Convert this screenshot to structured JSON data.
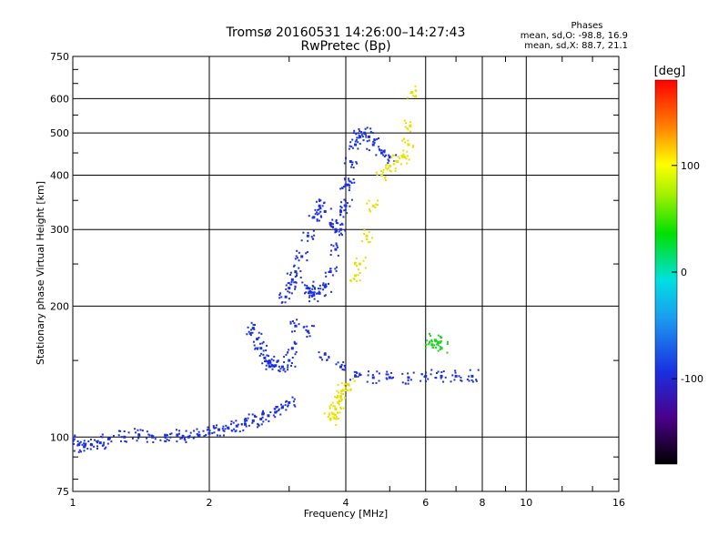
{
  "chart_data": {
    "type": "scatter",
    "title": "Tromsø 20160531 14:26:00–14:27:43",
    "subtitle": "RwPretec (Bp)",
    "xlabel": "Frequency [MHz]",
    "ylabel": "Stationary phase Virtual Height [km]",
    "x_scale": "log",
    "y_scale": "log",
    "xlim": [
      1,
      16
    ],
    "ylim": [
      75,
      750
    ],
    "x_ticks": [
      "1",
      "2",
      "4",
      "6",
      "8",
      "10",
      "16"
    ],
    "x_tick_values": [
      1,
      2,
      4,
      6,
      8,
      10,
      16
    ],
    "y_ticks": [
      "75",
      "100",
      "200",
      "300",
      "400",
      "500",
      "600",
      "750"
    ],
    "y_tick_values": [
      75,
      100,
      200,
      300,
      400,
      500,
      600,
      750
    ],
    "grid": true,
    "stats": {
      "heading": "Phases",
      "line_o": "mean, sd,O: -98.8, 16.9",
      "line_x": "mean, sd,X:  88.7, 21.1"
    },
    "colorbar": {
      "label": "[deg]",
      "range": [
        -180,
        180
      ],
      "ticks": [
        "100",
        "0",
        "-100"
      ],
      "tick_values": [
        100,
        0,
        -100
      ]
    },
    "series": [
      {
        "polarization": "O",
        "phase_deg": -100,
        "color": "#1a2fe0",
        "x": [
          1.0,
          1.03,
          1.06,
          1.1,
          1.15,
          1.2,
          1.3,
          1.4,
          1.5,
          1.6,
          1.7,
          1.8,
          1.9,
          2.0,
          2.1,
          2.2,
          2.3,
          2.4,
          2.5,
          2.6,
          2.7,
          2.8,
          2.9,
          3.0
        ],
        "y": [
          98,
          96,
          95,
          96,
          97,
          99,
          100,
          101,
          100,
          101,
          101,
          100,
          101,
          102,
          104,
          105,
          106,
          107,
          109,
          110,
          112,
          114,
          117,
          120
        ]
      },
      {
        "polarization": "O",
        "phase_deg": -100,
        "color": "#1a2fe0",
        "x": [
          2.5,
          2.55,
          2.6,
          2.65,
          2.7,
          2.75,
          2.8,
          2.9,
          3.0,
          3.05,
          3.1,
          3.3,
          3.6,
          3.9,
          4.2,
          4.6,
          5.0,
          5.5,
          6.0,
          6.5,
          7.0,
          7.6
        ],
        "y": [
          178,
          168,
          160,
          152,
          148,
          146,
          146,
          145,
          150,
          160,
          180,
          175,
          155,
          145,
          138,
          137,
          137,
          137,
          138,
          138,
          138,
          138
        ]
      },
      {
        "polarization": "O",
        "phase_deg": -100,
        "color": "#1a2fe0",
        "x": [
          2.95,
          3.0,
          3.05,
          3.1,
          3.2,
          3.3,
          3.4,
          3.5,
          3.6,
          3.7,
          3.8,
          3.9,
          4.0,
          4.1,
          4.2,
          4.3,
          4.4,
          4.5,
          4.6,
          4.8,
          5.0
        ],
        "y": [
          210,
          220,
          230,
          240,
          260,
          290,
          320,
          340,
          330,
          310,
          300,
          330,
          380,
          430,
          470,
          490,
          500,
          490,
          470,
          450,
          440
        ]
      },
      {
        "polarization": "O",
        "phase_deg": -100,
        "color": "#1a2fe0",
        "x": [
          3.3,
          3.35,
          3.4,
          3.5,
          3.6,
          3.7,
          3.8,
          3.9,
          4.0,
          4.05
        ],
        "y": [
          220,
          215,
          212,
          214,
          222,
          240,
          270,
          300,
          340,
          380
        ]
      },
      {
        "polarization": "X",
        "phase_deg": 95,
        "color": "#e8e000",
        "x": [
          3.7,
          3.75,
          3.8,
          3.85,
          3.9,
          3.95,
          4.05,
          4.2,
          4.3,
          4.45,
          4.6,
          4.8,
          5.0,
          5.2,
          5.4,
          5.5,
          5.55,
          5.6
        ],
        "y": [
          110,
          113,
          116,
          120,
          124,
          128,
          132,
          235,
          250,
          290,
          340,
          400,
          420,
          430,
          440,
          470,
          520,
          620
        ]
      },
      {
        "polarization": "X",
        "phase_deg": 40,
        "color": "#20d020",
        "x": [
          6.2,
          6.3,
          6.4,
          6.5
        ],
        "y": [
          163,
          167,
          165,
          160
        ]
      }
    ]
  }
}
